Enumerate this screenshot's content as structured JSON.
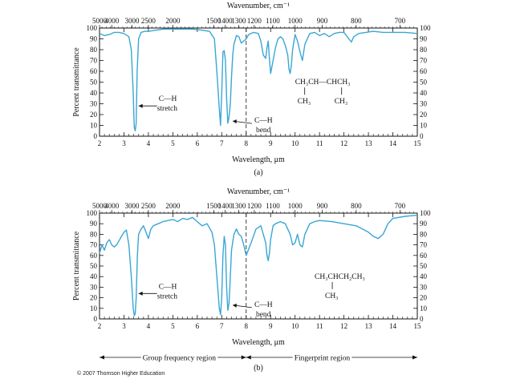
{
  "chart_data": [
    {
      "type": "line",
      "panel_label": "(a)",
      "top_axis_title": "Wavenumber, cm⁻¹",
      "top_ticks": [
        "5000",
        "4000",
        "3000",
        "2500",
        "2000",
        "1500",
        "1400",
        "1300",
        "1200",
        "1100",
        "1000",
        "900",
        "800",
        "700"
      ],
      "xlabel": "Wavelength, μm",
      "ylabel": "Percent transmittance",
      "xlim": [
        2,
        15
      ],
      "ylim": [
        0,
        100
      ],
      "x_ticks": [
        2,
        3,
        4,
        5,
        6,
        7,
        8,
        9,
        10,
        11,
        12,
        13,
        14,
        15
      ],
      "y_ticks": [
        0,
        10,
        20,
        30,
        40,
        50,
        60,
        70,
        80,
        90,
        100
      ],
      "series": [
        {
          "color": "#3aa6d4",
          "x": [
            2.0,
            2.2,
            2.4,
            2.6,
            2.8,
            3.0,
            3.2,
            3.3,
            3.38,
            3.42,
            3.46,
            3.5,
            3.54,
            3.6,
            3.7,
            3.85,
            4.0,
            4.3,
            4.6,
            5.0,
            5.4,
            5.8,
            6.2,
            6.5,
            6.7,
            6.8,
            6.9,
            6.95,
            7.0,
            7.05,
            7.1,
            7.15,
            7.2,
            7.25,
            7.3,
            7.35,
            7.4,
            7.45,
            7.5,
            7.6,
            7.7,
            7.8,
            7.9,
            8.0,
            8.1,
            8.3,
            8.5,
            8.6,
            8.7,
            8.8,
            8.85,
            8.9,
            8.95,
            9.0,
            9.1,
            9.2,
            9.3,
            9.4,
            9.5,
            9.6,
            9.7,
            9.75,
            9.8,
            9.85,
            9.9,
            10.0,
            10.1,
            10.2,
            10.3,
            10.4,
            10.6,
            10.8,
            11.0,
            11.2,
            11.4,
            11.6,
            11.8,
            12.0,
            12.2,
            12.3,
            12.4,
            12.6,
            12.9,
            13.2,
            13.6,
            14.0,
            14.5,
            15.0
          ],
          "y": [
            95,
            93,
            94,
            96,
            96,
            95,
            92,
            80,
            40,
            8,
            5,
            12,
            60,
            90,
            96,
            97,
            97,
            98,
            99,
            99,
            99,
            99,
            98,
            97,
            90,
            60,
            25,
            10,
            40,
            78,
            79,
            70,
            35,
            12,
            18,
            30,
            55,
            75,
            85,
            93,
            92,
            86,
            88,
            90,
            94,
            96,
            95,
            88,
            75,
            72,
            82,
            88,
            72,
            58,
            70,
            82,
            90,
            92,
            90,
            84,
            75,
            62,
            58,
            66,
            80,
            94,
            88,
            78,
            70,
            85,
            95,
            96,
            93,
            95,
            92,
            95,
            96,
            96,
            90,
            87,
            92,
            95,
            96,
            97,
            96,
            96,
            96,
            95
          ]
        }
      ],
      "annotations": [
        {
          "lines": [
            "C—H",
            "stretch"
          ]
        },
        {
          "lines": [
            "C—H",
            "bend"
          ]
        }
      ],
      "structure": {
        "line1": "CH₃CH—CHCH₃",
        "line2a": "CH₃",
        "line2b": "CH₃"
      }
    },
    {
      "type": "line",
      "panel_label": "(b)",
      "top_axis_title": "Wavenumber, cm⁻¹",
      "top_ticks": [
        "5000",
        "4000",
        "3000",
        "2500",
        "2000",
        "1500",
        "1400",
        "1300",
        "1200",
        "1100",
        "1000",
        "900",
        "800",
        "700"
      ],
      "xlabel": "Wavelength, μm",
      "ylabel": "Percent transmittance",
      "xlim": [
        2,
        15
      ],
      "ylim": [
        0,
        100
      ],
      "x_ticks": [
        2,
        3,
        4,
        5,
        6,
        7,
        8,
        9,
        10,
        11,
        12,
        13,
        14,
        15
      ],
      "y_ticks": [
        0,
        10,
        20,
        30,
        40,
        50,
        60,
        70,
        80,
        90,
        100
      ],
      "series": [
        {
          "color": "#3aa6d4",
          "x": [
            2.0,
            2.1,
            2.2,
            2.3,
            2.4,
            2.5,
            2.6,
            2.7,
            2.8,
            2.9,
            3.0,
            3.1,
            3.2,
            3.3,
            3.38,
            3.42,
            3.46,
            3.5,
            3.55,
            3.6,
            3.7,
            3.8,
            3.9,
            4.0,
            4.1,
            4.2,
            4.4,
            4.6,
            4.8,
            5.0,
            5.2,
            5.4,
            5.6,
            5.8,
            6.0,
            6.2,
            6.4,
            6.6,
            6.7,
            6.8,
            6.9,
            6.95,
            7.0,
            7.05,
            7.1,
            7.15,
            7.2,
            7.25,
            7.3,
            7.35,
            7.4,
            7.5,
            7.6,
            7.7,
            7.8,
            7.9,
            8.0,
            8.2,
            8.4,
            8.6,
            8.7,
            8.8,
            8.85,
            8.9,
            8.95,
            9.0,
            9.1,
            9.2,
            9.4,
            9.6,
            9.8,
            9.9,
            10.0,
            10.1,
            10.2,
            10.3,
            10.4,
            10.6,
            10.8,
            11.0,
            11.5,
            12.0,
            12.5,
            13.0,
            13.2,
            13.4,
            13.6,
            13.8,
            14.0,
            14.5,
            15.0
          ],
          "y": [
            62,
            70,
            65,
            72,
            75,
            70,
            68,
            70,
            74,
            78,
            82,
            84,
            70,
            40,
            10,
            3,
            5,
            20,
            60,
            80,
            85,
            88,
            82,
            76,
            85,
            88,
            90,
            92,
            93,
            94,
            92,
            95,
            94,
            96,
            92,
            88,
            90,
            82,
            70,
            40,
            10,
            4,
            20,
            60,
            78,
            70,
            30,
            8,
            15,
            40,
            65,
            80,
            85,
            80,
            78,
            70,
            60,
            72,
            85,
            88,
            80,
            72,
            60,
            55,
            62,
            75,
            88,
            90,
            92,
            90,
            80,
            70,
            72,
            80,
            70,
            68,
            80,
            90,
            92,
            93,
            92,
            90,
            88,
            82,
            78,
            76,
            80,
            90,
            95,
            97,
            98
          ]
        }
      ],
      "annotations": [
        {
          "lines": [
            "C—H",
            "stretch"
          ]
        },
        {
          "lines": [
            "C—H",
            "bend"
          ]
        }
      ],
      "structure": {
        "line1": "CH₃CHCH₂CH₃",
        "line2": "CH₃"
      },
      "regions": [
        "Group frequency region",
        "Fingerprint region"
      ]
    }
  ],
  "footer": "© 2007 Thomson Higher Education"
}
